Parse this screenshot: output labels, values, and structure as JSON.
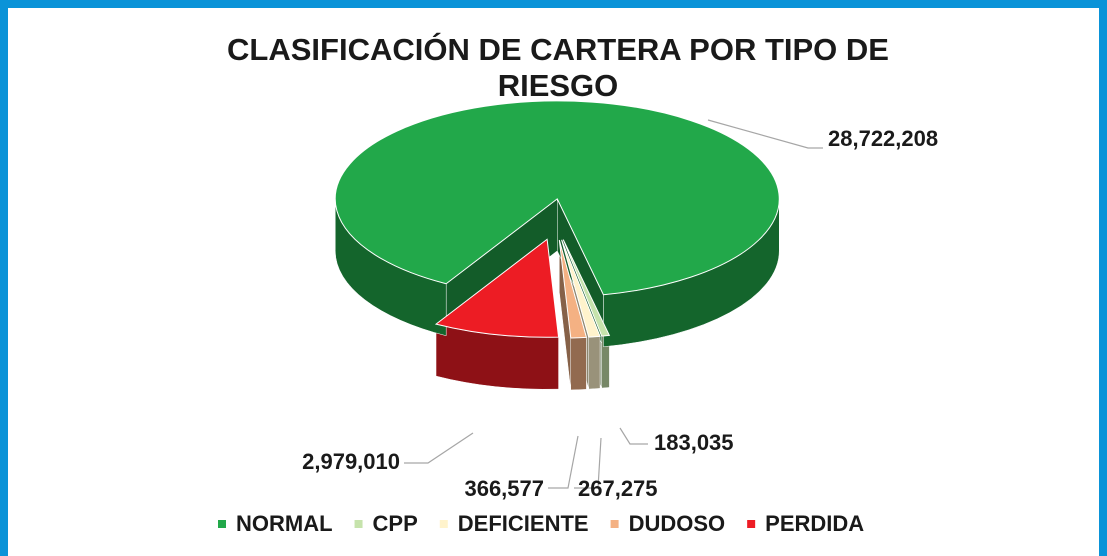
{
  "chart_data": {
    "type": "pie3d",
    "title": "CLASIFICACIÓN DE CARTERA POR TIPO DE RIESGO",
    "categories": [
      "NORMAL",
      "CPP",
      "DEFICIENTE",
      "DUDOSO",
      "PERDIDA"
    ],
    "values": [
      28722208,
      183035,
      267275,
      366577,
      2979010
    ],
    "value_labels": [
      "28,722,208",
      "183,035",
      "267,275",
      "366,577",
      "2,979,010"
    ],
    "colors": [
      "#22a84a",
      "#c6e3ac",
      "#fff3cc",
      "#f4b183",
      "#ed1c24"
    ],
    "legend": "bottom"
  }
}
